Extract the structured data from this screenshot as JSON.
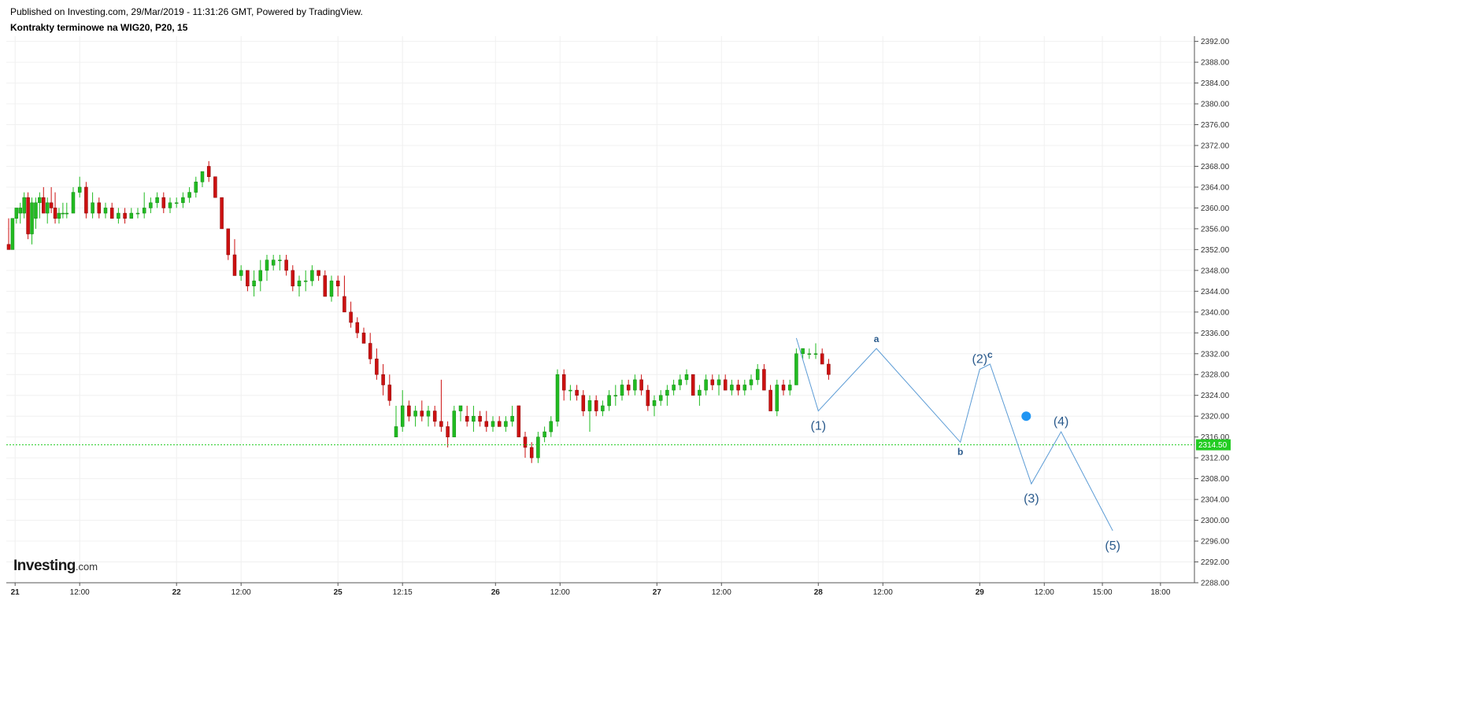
{
  "header": {
    "published": "Published on Investing.com, 29/Mar/2019 - 11:31:26 GMT, Powered by TradingView.",
    "title": "Kontrakty terminowe na WIG20, P20, 15"
  },
  "logo": {
    "main": "Investing",
    "suffix": ".com"
  },
  "colors": {
    "up": "#22bb22",
    "down": "#cc1111",
    "wave": "#5b9bd5",
    "wave_label": "#2a5a8c",
    "price_line": "#22cc22",
    "marker": "#2196f3"
  },
  "chart_data": {
    "type": "candlestick",
    "ylim": [
      2288,
      2393
    ],
    "y_ticks": [
      "2392.00",
      "2388.00",
      "2384.00",
      "2380.00",
      "2376.00",
      "2372.00",
      "2368.00",
      "2364.00",
      "2360.00",
      "2356.00",
      "2352.00",
      "2348.00",
      "2344.00",
      "2340.00",
      "2336.00",
      "2332.00",
      "2328.00",
      "2324.00",
      "2320.00",
      "2316.00",
      "2312.00",
      "2308.00",
      "2304.00",
      "2300.00",
      "2296.00",
      "2292.00",
      "2288.00"
    ],
    "x_ticks": [
      {
        "label": "21",
        "bold": true,
        "t": 0.05
      },
      {
        "label": "12:00",
        "bold": false,
        "t": 0.55
      },
      {
        "label": "22",
        "bold": true,
        "t": 1.3
      },
      {
        "label": "12:00",
        "bold": false,
        "t": 1.8
      },
      {
        "label": "25",
        "bold": true,
        "t": 2.55
      },
      {
        "label": "12:15",
        "bold": false,
        "t": 3.05
      },
      {
        "label": "26",
        "bold": true,
        "t": 3.77
      },
      {
        "label": "12:00",
        "bold": false,
        "t": 4.27
      },
      {
        "label": "27",
        "bold": true,
        "t": 5.02
      },
      {
        "label": "12:00",
        "bold": false,
        "t": 5.52
      },
      {
        "label": "28",
        "bold": true,
        "t": 6.27
      },
      {
        "label": "12:00",
        "bold": false,
        "t": 6.77
      },
      {
        "label": "29",
        "bold": true,
        "t": 7.52
      },
      {
        "label": "12:00",
        "bold": false,
        "t": 8.02
      },
      {
        "label": "15:00",
        "bold": false,
        "t": 8.47
      },
      {
        "label": "18:00",
        "bold": false,
        "t": 8.92
      }
    ],
    "current_price": "2314.50",
    "candles": [
      [
        0.0,
        2353,
        2358,
        2352,
        2352
      ],
      [
        0.03,
        2352,
        2358,
        2352,
        2358
      ],
      [
        0.06,
        2358,
        2360,
        2357,
        2360
      ],
      [
        0.09,
        2359,
        2361,
        2357,
        2360
      ],
      [
        0.12,
        2359,
        2363,
        2358,
        2362
      ],
      [
        0.15,
        2362,
        2363,
        2354,
        2355
      ],
      [
        0.18,
        2355,
        2362,
        2353,
        2361
      ],
      [
        0.21,
        2358,
        2362,
        2356,
        2361
      ],
      [
        0.24,
        2361,
        2363,
        2358,
        2362
      ],
      [
        0.27,
        2362,
        2364,
        2359,
        2359
      ],
      [
        0.3,
        2359,
        2362,
        2357,
        2361
      ],
      [
        0.33,
        2361,
        2364,
        2359,
        2360
      ],
      [
        0.36,
        2360,
        2363,
        2357,
        2358
      ],
      [
        0.39,
        2358,
        2360,
        2357,
        2359
      ],
      [
        0.42,
        2359,
        2361,
        2358,
        2359
      ],
      [
        0.45,
        2359,
        2361,
        2358,
        2359
      ],
      [
        0.5,
        2359,
        2364,
        2359,
        2363
      ],
      [
        0.55,
        2363,
        2366,
        2362,
        2364
      ],
      [
        0.6,
        2364,
        2365,
        2358,
        2359
      ],
      [
        0.65,
        2359,
        2363,
        2358,
        2361
      ],
      [
        0.7,
        2361,
        2362,
        2358,
        2359
      ],
      [
        0.75,
        2359,
        2361,
        2358,
        2360
      ],
      [
        0.8,
        2360,
        2361,
        2358,
        2358
      ],
      [
        0.85,
        2358,
        2360,
        2357,
        2359
      ],
      [
        0.9,
        2359,
        2360,
        2357,
        2358
      ],
      [
        0.95,
        2358,
        2360,
        2358,
        2359
      ],
      [
        1.0,
        2359,
        2360,
        2358,
        2359
      ],
      [
        1.05,
        2359,
        2363,
        2358,
        2360
      ],
      [
        1.1,
        2360,
        2362,
        2359,
        2361
      ],
      [
        1.15,
        2361,
        2363,
        2360,
        2362
      ],
      [
        1.2,
        2362,
        2363,
        2359,
        2360
      ],
      [
        1.25,
        2360,
        2362,
        2359,
        2361
      ],
      [
        1.3,
        2361,
        2362,
        2360,
        2361
      ],
      [
        1.35,
        2361,
        2363,
        2360,
        2362
      ],
      [
        1.4,
        2362,
        2364,
        2361,
        2363
      ],
      [
        1.45,
        2363,
        2366,
        2362,
        2365
      ],
      [
        1.5,
        2365,
        2367,
        2364,
        2367
      ],
      [
        1.55,
        2368,
        2369,
        2365,
        2366
      ],
      [
        1.6,
        2366,
        2366,
        2362,
        2362
      ],
      [
        1.65,
        2362,
        2362,
        2356,
        2356
      ],
      [
        1.7,
        2356,
        2356,
        2350,
        2351
      ],
      [
        1.75,
        2351,
        2354,
        2347,
        2347
      ],
      [
        1.8,
        2347,
        2349,
        2346,
        2348
      ],
      [
        1.85,
        2348,
        2348,
        2344,
        2345
      ],
      [
        1.9,
        2345,
        2348,
        2343,
        2346
      ],
      [
        1.95,
        2346,
        2350,
        2344,
        2348
      ],
      [
        2.0,
        2348,
        2351,
        2346,
        2350
      ],
      [
        2.05,
        2349,
        2351,
        2348,
        2350
      ],
      [
        2.1,
        2350,
        2351,
        2348,
        2350
      ],
      [
        2.15,
        2350,
        2351,
        2347,
        2348
      ],
      [
        2.2,
        2348,
        2349,
        2344,
        2345
      ],
      [
        2.25,
        2345,
        2347,
        2343,
        2346
      ],
      [
        2.3,
        2346,
        2348,
        2344,
        2346
      ],
      [
        2.35,
        2346,
        2349,
        2345,
        2348
      ],
      [
        2.4,
        2348,
        2348,
        2346,
        2347
      ],
      [
        2.45,
        2347,
        2348,
        2343,
        2343
      ],
      [
        2.5,
        2343,
        2347,
        2342,
        2346
      ],
      [
        2.55,
        2346,
        2347,
        2343,
        2345
      ],
      [
        2.6,
        2343,
        2347,
        2340,
        2340
      ],
      [
        2.65,
        2340,
        2342,
        2337,
        2338
      ],
      [
        2.7,
        2338,
        2339,
        2335,
        2336
      ],
      [
        2.75,
        2336,
        2337,
        2334,
        2334
      ],
      [
        2.8,
        2334,
        2336,
        2330,
        2331
      ],
      [
        2.85,
        2331,
        2333,
        2327,
        2328
      ],
      [
        2.9,
        2328,
        2330,
        2324,
        2326
      ],
      [
        2.95,
        2326,
        2328,
        2322,
        2323
      ],
      [
        3.0,
        2316,
        2322,
        2316,
        2318
      ],
      [
        3.05,
        2318,
        2325,
        2317,
        2322
      ],
      [
        3.1,
        2322,
        2323,
        2319,
        2320
      ],
      [
        3.15,
        2320,
        2322,
        2318,
        2321
      ],
      [
        3.2,
        2321,
        2323,
        2319,
        2320
      ],
      [
        3.25,
        2320,
        2322,
        2318,
        2321
      ],
      [
        3.3,
        2321,
        2322,
        2318,
        2319
      ],
      [
        3.35,
        2319,
        2327,
        2317,
        2318
      ],
      [
        3.4,
        2318,
        2319,
        2314,
        2316
      ],
      [
        3.45,
        2316,
        2322,
        2316,
        2321
      ],
      [
        3.5,
        2321,
        2322,
        2319,
        2322
      ],
      [
        3.55,
        2320,
        2322,
        2318,
        2319
      ],
      [
        3.6,
        2319,
        2322,
        2317,
        2320
      ],
      [
        3.65,
        2320,
        2321,
        2318,
        2319
      ],
      [
        3.7,
        2319,
        2321,
        2317,
        2318
      ],
      [
        3.75,
        2318,
        2320,
        2317,
        2319
      ],
      [
        3.8,
        2319,
        2320,
        2318,
        2318
      ],
      [
        3.85,
        2318,
        2320,
        2317,
        2319
      ],
      [
        3.9,
        2319,
        2322,
        2318,
        2320
      ],
      [
        3.95,
        2322,
        2322,
        2316,
        2316
      ],
      [
        4.0,
        2316,
        2317,
        2312,
        2314
      ],
      [
        4.05,
        2314,
        2315,
        2311,
        2312
      ],
      [
        4.1,
        2312,
        2317,
        2311,
        2316
      ],
      [
        4.15,
        2316,
        2318,
        2315,
        2317
      ],
      [
        4.2,
        2317,
        2320,
        2316,
        2319
      ],
      [
        4.25,
        2319,
        2329,
        2318,
        2328
      ],
      [
        4.3,
        2328,
        2329,
        2323,
        2325
      ],
      [
        4.35,
        2325,
        2326,
        2323,
        2325
      ],
      [
        4.4,
        2325,
        2326,
        2323,
        2324
      ],
      [
        4.45,
        2324,
        2325,
        2320,
        2321
      ],
      [
        4.5,
        2321,
        2324,
        2317,
        2323
      ],
      [
        4.55,
        2323,
        2324,
        2320,
        2321
      ],
      [
        4.6,
        2321,
        2323,
        2320,
        2322
      ],
      [
        4.65,
        2322,
        2325,
        2321,
        2324
      ],
      [
        4.7,
        2324,
        2326,
        2322,
        2324
      ],
      [
        4.75,
        2324,
        2327,
        2323,
        2326
      ],
      [
        4.8,
        2326,
        2327,
        2324,
        2325
      ],
      [
        4.85,
        2325,
        2328,
        2324,
        2327
      ],
      [
        4.9,
        2327,
        2328,
        2324,
        2325
      ],
      [
        4.95,
        2325,
        2326,
        2321,
        2322
      ],
      [
        5.0,
        2322,
        2324,
        2320,
        2323
      ],
      [
        5.05,
        2323,
        2325,
        2322,
        2324
      ],
      [
        5.1,
        2324,
        2326,
        2322,
        2325
      ],
      [
        5.15,
        2325,
        2327,
        2324,
        2326
      ],
      [
        5.2,
        2326,
        2328,
        2325,
        2327
      ],
      [
        5.25,
        2327,
        2329,
        2326,
        2328
      ],
      [
        5.3,
        2328,
        2328,
        2324,
        2324
      ],
      [
        5.35,
        2324,
        2326,
        2322,
        2325
      ],
      [
        5.4,
        2325,
        2328,
        2324,
        2327
      ],
      [
        5.45,
        2327,
        2328,
        2325,
        2326
      ],
      [
        5.5,
        2326,
        2328,
        2324,
        2327
      ],
      [
        5.55,
        2327,
        2328,
        2325,
        2325
      ],
      [
        5.6,
        2325,
        2327,
        2324,
        2326
      ],
      [
        5.65,
        2326,
        2327,
        2324,
        2325
      ],
      [
        5.7,
        2325,
        2327,
        2324,
        2326
      ],
      [
        5.75,
        2326,
        2328,
        2325,
        2327
      ],
      [
        5.8,
        2327,
        2330,
        2326,
        2329
      ],
      [
        5.85,
        2329,
        2330,
        2325,
        2325
      ],
      [
        5.9,
        2325,
        2326,
        2321,
        2321
      ],
      [
        5.95,
        2321,
        2327,
        2320,
        2326
      ],
      [
        6.0,
        2326,
        2327,
        2324,
        2325
      ],
      [
        6.05,
        2325,
        2327,
        2324,
        2326
      ],
      [
        6.1,
        2326,
        2333,
        2326,
        2332
      ],
      [
        6.15,
        2332,
        2333,
        2331,
        2333
      ],
      [
        6.2,
        2332,
        2333,
        2331,
        2332
      ],
      [
        6.25,
        2332,
        2334,
        2331,
        2332
      ],
      [
        6.3,
        2332,
        2333,
        2330,
        2330
      ],
      [
        6.35,
        2330,
        2331,
        2327,
        2328
      ]
    ],
    "waves": [
      {
        "label": "(1)",
        "t": 6.27,
        "y": 2321,
        "style": "big",
        "pos": "below"
      },
      {
        "label": "a",
        "t": 6.72,
        "y": 2333,
        "style": "small",
        "pos": "above"
      },
      {
        "label": "b",
        "t": 7.37,
        "y": 2315,
        "style": "small",
        "pos": "below"
      },
      {
        "label": "(2)",
        "t": 7.52,
        "y": 2329,
        "style": "big",
        "pos": "above"
      },
      {
        "label": "c",
        "t": 7.6,
        "y": 2330,
        "style": "small",
        "pos": "above"
      },
      {
        "label": "(3)",
        "t": 7.92,
        "y": 2307,
        "style": "big",
        "pos": "below"
      },
      {
        "label": "(4)",
        "t": 8.15,
        "y": 2317,
        "style": "big",
        "pos": "above"
      },
      {
        "label": "(5)",
        "t": 8.55,
        "y": 2298,
        "style": "big",
        "pos": "below"
      }
    ]
  }
}
